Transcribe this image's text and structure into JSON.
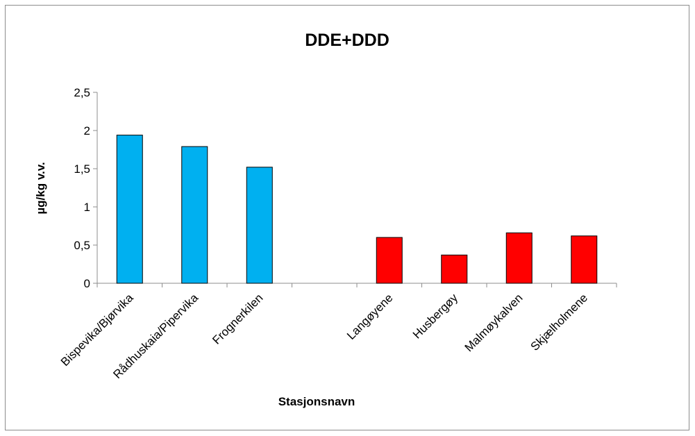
{
  "chart_data": {
    "type": "bar",
    "title": "DDE+DDD",
    "xlabel": "Stasjonsnavn",
    "ylabel": "µg/kg v.v.",
    "ylim": [
      0,
      2.5
    ],
    "yticks": [
      "0",
      "0,5",
      "1",
      "1,5",
      "2",
      "2,5"
    ],
    "ytick_values": [
      0,
      0.5,
      1,
      1.5,
      2,
      2.5
    ],
    "grid": false,
    "categories": [
      "Bispevika/Bjørvika",
      "Rådhuskaia/Pipervika",
      "Frognerkilen",
      "",
      "Langøyene",
      "Husbergøy",
      "Malmøykalven",
      "Skjælholmene"
    ],
    "values": [
      1.94,
      1.79,
      1.52,
      null,
      0.6,
      0.37,
      0.66,
      0.62
    ],
    "bar_colors": [
      "#00b0f0",
      "#00b0f0",
      "#00b0f0",
      null,
      "#ff0000",
      "#ff0000",
      "#ff0000",
      "#ff0000"
    ]
  }
}
